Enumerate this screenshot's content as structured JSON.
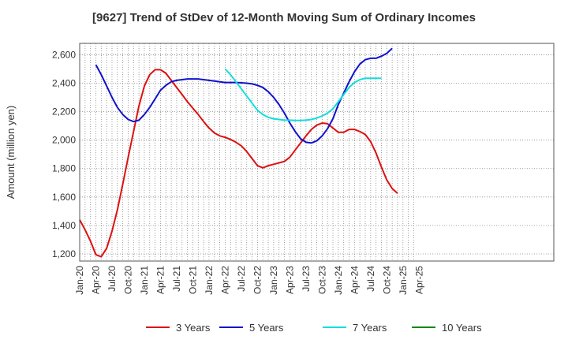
{
  "chart_data": {
    "type": "line",
    "title": "[9627]  Trend of StDev of 12-Month Moving Sum of Ordinary Incomes",
    "ylabel": "Amount (million yen)",
    "xlabel": "",
    "ylim": [
      1150,
      2680
    ],
    "yticks": [
      1200,
      1400,
      1600,
      1800,
      2000,
      2200,
      2400,
      2600
    ],
    "ytick_labels": [
      "1,200",
      "1,400",
      "1,600",
      "1,800",
      "2,000",
      "2,200",
      "2,400",
      "2,600"
    ],
    "xtick_labels": [
      "Jan-20",
      "Apr-20",
      "Jul-20",
      "Oct-20",
      "Jan-21",
      "Apr-21",
      "Jul-21",
      "Oct-21",
      "Jan-22",
      "Apr-22",
      "Jul-22",
      "Oct-22",
      "Jan-23",
      "Apr-23",
      "Jul-23",
      "Oct-23",
      "Jan-24",
      "Apr-24",
      "Jul-24",
      "Oct-24",
      "Jan-25",
      "Apr-25"
    ],
    "grid": true,
    "legend_position": "bottom",
    "series": [
      {
        "name": "3 Years",
        "color": "#dd1111",
        "start_month_index": 0,
        "values": [
          1440,
          1370,
          1290,
          1195,
          1180,
          1240,
          1360,
          1510,
          1690,
          1880,
          2060,
          2240,
          2380,
          2460,
          2495,
          2495,
          2470,
          2420,
          2370,
          2320,
          2270,
          2225,
          2180,
          2130,
          2085,
          2050,
          2030,
          2020,
          2005,
          1985,
          1960,
          1920,
          1870,
          1820,
          1805,
          1820,
          1830,
          1840,
          1850,
          1880,
          1930,
          1980,
          2030,
          2075,
          2105,
          2120,
          2115,
          2085,
          2055,
          2055,
          2075,
          2075,
          2060,
          2040,
          1990,
          1910,
          1810,
          1720,
          1660,
          1625
        ]
      },
      {
        "name": "5 Years",
        "color": "#1111cc",
        "start_month_index": 3,
        "values": [
          2530,
          2460,
          2380,
          2300,
          2230,
          2180,
          2145,
          2130,
          2140,
          2180,
          2230,
          2290,
          2350,
          2385,
          2410,
          2420,
          2425,
          2430,
          2430,
          2430,
          2425,
          2420,
          2415,
          2410,
          2405,
          2405,
          2405,
          2403,
          2400,
          2395,
          2385,
          2370,
          2340,
          2300,
          2250,
          2190,
          2120,
          2060,
          2010,
          1985,
          1980,
          1995,
          2030,
          2080,
          2150,
          2250,
          2330,
          2410,
          2480,
          2535,
          2565,
          2575,
          2575,
          2590,
          2610,
          2645
        ]
      },
      {
        "name": "7 Years",
        "color": "#11dddd",
        "start_month_index": 27,
        "values": [
          2500,
          2460,
          2410,
          2360,
          2310,
          2260,
          2210,
          2180,
          2160,
          2150,
          2145,
          2140,
          2140,
          2138,
          2138,
          2140,
          2145,
          2155,
          2170,
          2190,
          2220,
          2270,
          2320,
          2370,
          2405,
          2425,
          2435,
          2435,
          2435,
          2435
        ]
      },
      {
        "name": "10 Years",
        "color": "#118811",
        "start_month_index": 0,
        "values": []
      }
    ]
  }
}
